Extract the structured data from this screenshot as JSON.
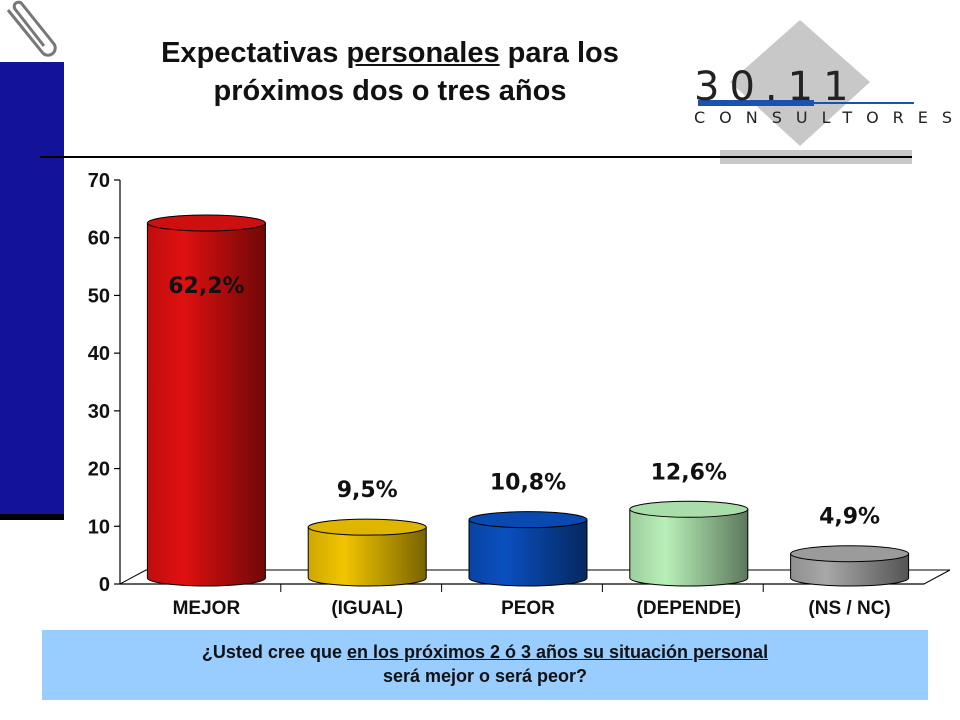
{
  "title": {
    "part1": "Expectativas ",
    "underlined": "personales",
    "part2": " para los",
    "line2": "próximos dos o tres años"
  },
  "logo": {
    "number": "30.11",
    "subtitle": "CONSULTORES"
  },
  "question": {
    "part1": "¿Usted cree que ",
    "underlined": "en los próximos 2 ó 3 años su situación  personal",
    "line2": "será  mejor  o  será  peor?"
  },
  "chart_data": {
    "type": "bar",
    "categories": [
      "MEJOR",
      "(IGUAL)",
      "PEOR",
      "(DEPENDE)",
      "(NS / NC)"
    ],
    "values": [
      62.2,
      9.5,
      10.8,
      12.6,
      4.9
    ],
    "data_labels": [
      "62,2%",
      "9,5%",
      "10,8%",
      "12,6%",
      "4,9%"
    ],
    "colors": [
      "#e01010",
      "#f2c500",
      "#0a4fc0",
      "#b8f0b8",
      "#a8a8a8"
    ],
    "ylim": [
      0,
      70
    ],
    "yticks": [
      0,
      10,
      20,
      30,
      40,
      50,
      60,
      70
    ],
    "style": "3d-cylinder",
    "grid": false,
    "legend": "none"
  }
}
